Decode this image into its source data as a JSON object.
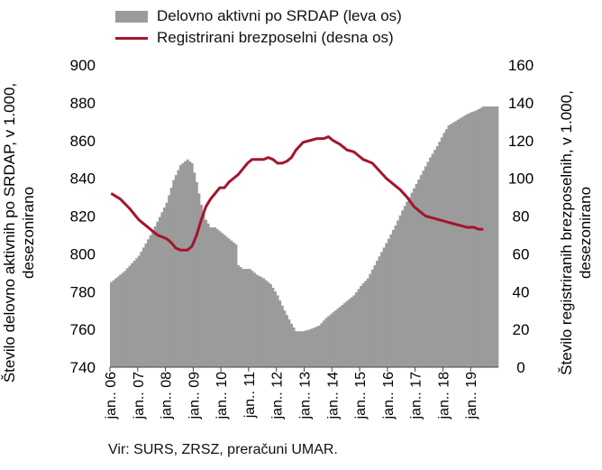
{
  "legend": {
    "area_label": "Delovno aktivni po SRDAP (leva os)",
    "line_label": "Registrirani brezposelni (desna os)"
  },
  "source": "Vir: SURS, ZRSZ, preračuni UMAR.",
  "chart_data": {
    "type": "area+line",
    "title": "",
    "ylabel_left": "Število delovno aktivnih po SRDAP, v 1.000, desezonirano",
    "ylabel_right": "Število registriranih brezposelnih, v 1.000, desezonirano",
    "ylim_left": [
      740,
      900
    ],
    "ylim_right": [
      0,
      160
    ],
    "yticks_left": [
      "900",
      "880",
      "860",
      "840",
      "820",
      "800",
      "780",
      "760",
      "740"
    ],
    "yticks_right": [
      "160",
      "140",
      "120",
      "100",
      "80",
      "60",
      "40",
      "20",
      "0"
    ],
    "x_tick_labels": [
      "jan.. 06",
      "jan.. 07",
      "jan.. 08",
      "jan.. 09",
      "jan.. 10",
      "jan.. 11",
      "jan.. 12",
      "jan.. 13",
      "jan.. 14",
      "jan.. 15",
      "jan.. 16",
      "jan.. 17",
      "jan.. 18",
      "jan.. 19"
    ],
    "x_start_month": "2006-01",
    "x_months": 168,
    "colors": {
      "area": "#9b9b9b",
      "line": "#a3152d"
    },
    "series": [
      {
        "name": "Delovno aktivni po SRDAP (leva os)",
        "axis": "left",
        "points": [
          [
            0,
            785
          ],
          [
            6,
            791
          ],
          [
            12,
            799
          ],
          [
            18,
            812
          ],
          [
            24,
            827
          ],
          [
            27,
            839
          ],
          [
            30,
            847
          ],
          [
            33,
            850
          ],
          [
            35,
            848
          ],
          [
            37,
            838
          ],
          [
            39,
            826
          ],
          [
            41,
            818
          ],
          [
            43,
            814
          ],
          [
            45,
            814
          ],
          [
            48,
            811
          ],
          [
            51,
            808
          ],
          [
            54,
            805
          ],
          [
            55,
            794
          ],
          [
            57,
            792
          ],
          [
            60,
            792
          ],
          [
            63,
            789
          ],
          [
            66,
            787
          ],
          [
            69,
            784
          ],
          [
            72,
            778
          ],
          [
            75,
            770
          ],
          [
            78,
            763
          ],
          [
            80,
            759
          ],
          [
            83,
            759
          ],
          [
            86,
            760
          ],
          [
            90,
            762
          ],
          [
            93,
            766
          ],
          [
            96,
            769
          ],
          [
            99,
            772
          ],
          [
            102,
            775
          ],
          [
            105,
            778
          ],
          [
            108,
            783
          ],
          [
            111,
            787
          ],
          [
            114,
            794
          ],
          [
            117,
            801
          ],
          [
            120,
            808
          ],
          [
            123,
            815
          ],
          [
            126,
            823
          ],
          [
            129,
            830
          ],
          [
            132,
            837
          ],
          [
            135,
            844
          ],
          [
            138,
            851
          ],
          [
            141,
            857
          ],
          [
            144,
            864
          ],
          [
            146,
            868
          ],
          [
            150,
            871
          ],
          [
            154,
            874
          ],
          [
            158,
            876
          ],
          [
            161,
            878
          ]
        ]
      },
      {
        "name": "Registrirani brezposelni (desna os)",
        "axis": "right",
        "points": [
          [
            0,
            92
          ],
          [
            4,
            89
          ],
          [
            8,
            84
          ],
          [
            12,
            78
          ],
          [
            16,
            74
          ],
          [
            20,
            70
          ],
          [
            24,
            68
          ],
          [
            26,
            66
          ],
          [
            28,
            63
          ],
          [
            30,
            62
          ],
          [
            33,
            62
          ],
          [
            35,
            64
          ],
          [
            37,
            70
          ],
          [
            39,
            78
          ],
          [
            41,
            85
          ],
          [
            43,
            89
          ],
          [
            45,
            92
          ],
          [
            47,
            95
          ],
          [
            49,
            95
          ],
          [
            51,
            98
          ],
          [
            53,
            100
          ],
          [
            55,
            102
          ],
          [
            57,
            105
          ],
          [
            59,
            108
          ],
          [
            61,
            110
          ],
          [
            63,
            110
          ],
          [
            66,
            110
          ],
          [
            68,
            111
          ],
          [
            70,
            110
          ],
          [
            72,
            108
          ],
          [
            74,
            108
          ],
          [
            76,
            109
          ],
          [
            78,
            111
          ],
          [
            80,
            115
          ],
          [
            83,
            119
          ],
          [
            86,
            120
          ],
          [
            89,
            121
          ],
          [
            92,
            121
          ],
          [
            94,
            122
          ],
          [
            96,
            120
          ],
          [
            99,
            118
          ],
          [
            102,
            115
          ],
          [
            105,
            114
          ],
          [
            107,
            112
          ],
          [
            109,
            110
          ],
          [
            111,
            109
          ],
          [
            113,
            108
          ],
          [
            116,
            104
          ],
          [
            119,
            100
          ],
          [
            122,
            97
          ],
          [
            125,
            94
          ],
          [
            128,
            90
          ],
          [
            131,
            85
          ],
          [
            134,
            82
          ],
          [
            136,
            80
          ],
          [
            139,
            79
          ],
          [
            142,
            78
          ],
          [
            145,
            77
          ],
          [
            148,
            76
          ],
          [
            151,
            75
          ],
          [
            154,
            74
          ],
          [
            157,
            74
          ],
          [
            159,
            73
          ],
          [
            161,
            73
          ]
        ]
      }
    ]
  }
}
